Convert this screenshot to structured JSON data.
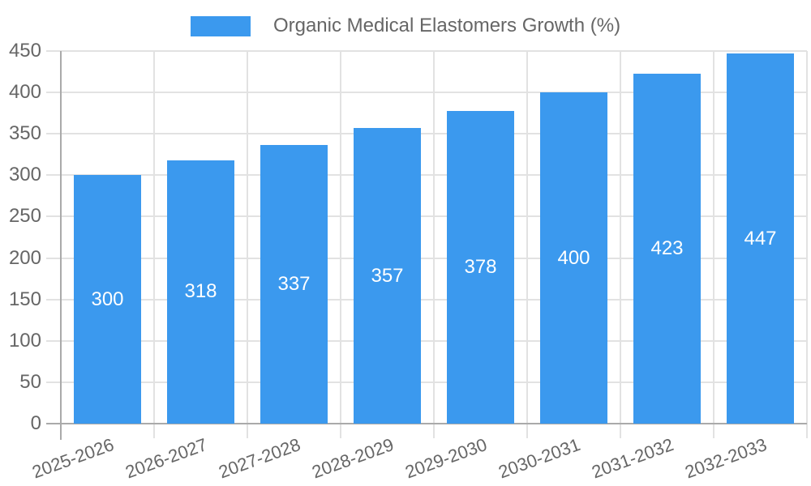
{
  "chart_data": {
    "type": "bar",
    "title": "Organic Medical Elastomers Growth (%)",
    "legend": [
      "Organic Medical Elastomers Growth (%)"
    ],
    "legend_position": "top-center",
    "categories": [
      "2025-2026",
      "2026-2027",
      "2027-2028",
      "2028-2029",
      "2029-2030",
      "2030-2031",
      "2031-2032",
      "2032-2033"
    ],
    "values": [
      300,
      318,
      337,
      357,
      378,
      400,
      423,
      447
    ],
    "xlabel": "",
    "ylabel": "",
    "ylim": [
      0,
      450
    ],
    "ytick_step": 50,
    "grid": true,
    "bar_label_position": "inside-center",
    "x_label_rotation_deg": -20,
    "colors": {
      "bar": "#3B99EE",
      "bar_label": "#FFFFFF",
      "axis_line": "#AAAAAA",
      "grid_line": "#E2E2E2",
      "tick_text": "#666666",
      "legend_text": "#666666",
      "background": "#FFFFFF"
    }
  }
}
